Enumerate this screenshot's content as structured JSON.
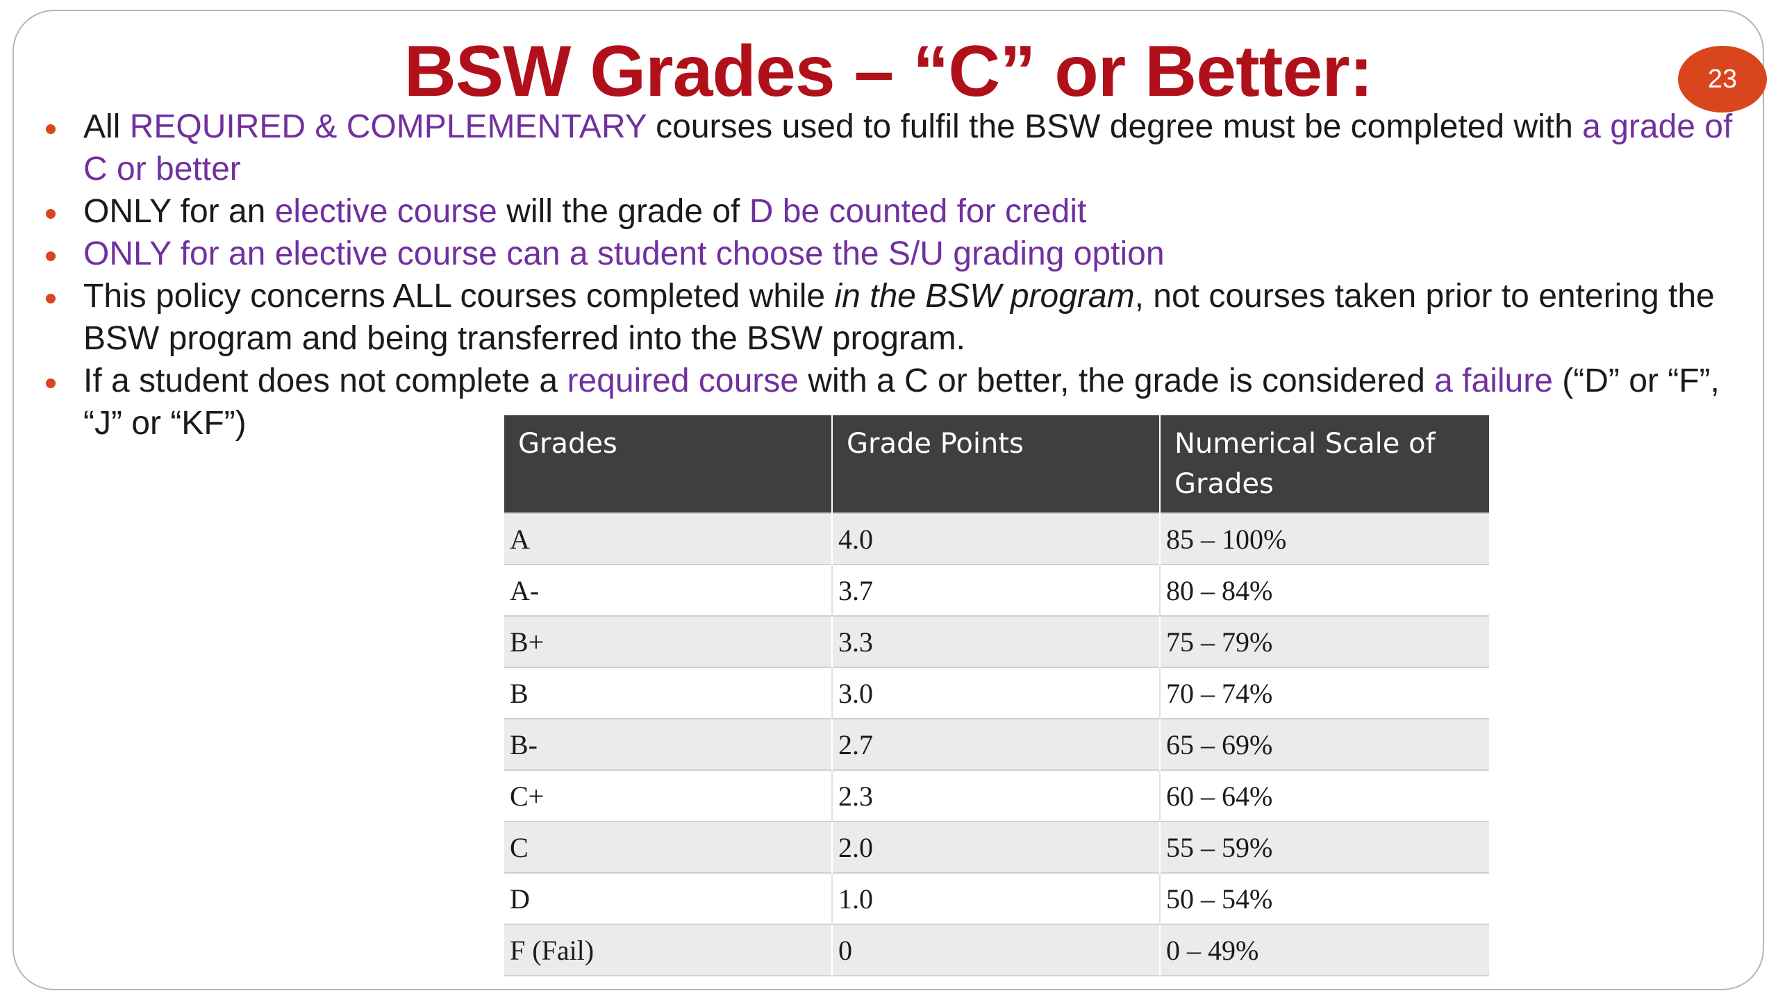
{
  "slide": {
    "title": "BSW Grades – “C” or Better:",
    "page_number": "23"
  },
  "bullets": [
    {
      "segments": [
        {
          "text": "All ",
          "style": "normal"
        },
        {
          "text": "REQUIRED & COMPLEMENTARY",
          "style": "highlight"
        },
        {
          "text": " courses used to fulfil the BSW degree must be completed with ",
          "style": "normal"
        },
        {
          "text": "a grade of C or better",
          "style": "highlight"
        }
      ]
    },
    {
      "segments": [
        {
          "text": "ONLY for an ",
          "style": "normal"
        },
        {
          "text": "elective course",
          "style": "highlight"
        },
        {
          "text": " will the grade of ",
          "style": "normal"
        },
        {
          "text": "D be counted for credit",
          "style": "highlight"
        }
      ]
    },
    {
      "segments": [
        {
          "text": "ONLY for an elective course can a student choose the S/U grading option",
          "style": "highlight"
        }
      ]
    },
    {
      "segments": [
        {
          "text": "This policy concerns ALL courses completed while ",
          "style": "normal"
        },
        {
          "text": "in the BSW program",
          "style": "italic"
        },
        {
          "text": ", not courses taken prior to entering the BSW program and being transferred into the BSW program.",
          "style": "normal"
        }
      ]
    },
    {
      "segments": [
        {
          "text": "If a student does not complete a ",
          "style": "normal"
        },
        {
          "text": "required course",
          "style": "highlight"
        },
        {
          "text": " with a C or better, the grade is considered ",
          "style": "normal"
        },
        {
          "text": "a failure",
          "style": "highlight"
        },
        {
          "text": " (“D” or “F”, “J” or “KF”)",
          "style": "normal"
        }
      ]
    }
  ],
  "grade_table": {
    "headers": [
      "Grades",
      "Grade Points",
      "Numerical Scale of Grades"
    ],
    "rows": [
      [
        "A",
        "4.0",
        "85 – 100%"
      ],
      [
        "A-",
        "3.7",
        "80 – 84%"
      ],
      [
        "B+",
        "3.3",
        "75 – 79%"
      ],
      [
        "B",
        "3.0",
        "70 – 74%"
      ],
      [
        "B-",
        "2.7",
        "65 – 69%"
      ],
      [
        "C+",
        "2.3",
        "60 – 64%"
      ],
      [
        "C",
        "2.0",
        "55 – 59%"
      ],
      [
        "D",
        "1.0",
        "50 – 54%"
      ],
      [
        "F (Fail)",
        "0",
        "0 – 49%"
      ]
    ]
  },
  "colors": {
    "title": "#b0101a",
    "highlight": "#7030a0",
    "bullet": "#d9451c",
    "badge": "#d9451c",
    "table_header": "#3f3f3f",
    "table_row_alt": "#eaebec"
  }
}
